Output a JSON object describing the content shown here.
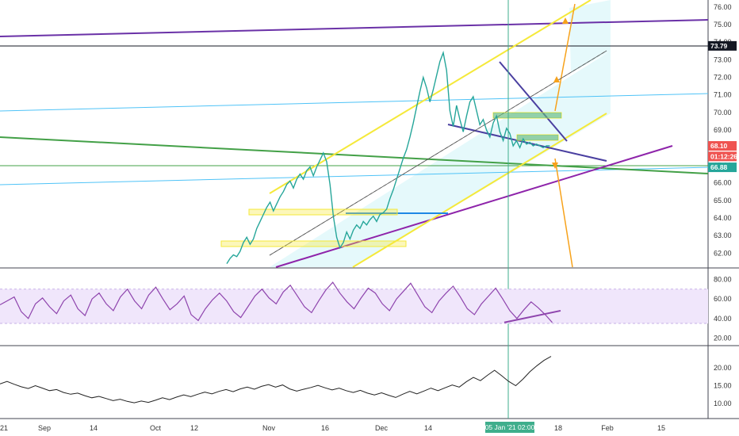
{
  "chart_data": {
    "type": "line",
    "title": "",
    "price_pane": {
      "ylim": [
        61.2,
        76.4
      ],
      "ticks": [
        "62.00",
        "63.00",
        "64.00",
        "65.00",
        "66.00",
        "67.00",
        "69.00",
        "70.00",
        "71.00",
        "72.00",
        "73.00",
        "74.00",
        "75.00",
        "76.00"
      ],
      "badges": [
        {
          "label": "73.79",
          "value": 73.79,
          "color": "#131722",
          "text_color": "#ffffff"
        },
        {
          "label": "68.10",
          "value": 68.1,
          "color": "#ef5350",
          "text_color": "#ffffff"
        },
        {
          "label": "01:12:26",
          "value": 67.5,
          "color": "#ef5350",
          "text_color": "#ffffff"
        },
        {
          "label": "66.88",
          "value": 66.88,
          "color": "#26a69a",
          "text_color": "#ffffff"
        }
      ],
      "series": [
        {
          "x": [
            20,
            22,
            24,
            26,
            28,
            30,
            32,
            34,
            36,
            38,
            40,
            42,
            44,
            46,
            48,
            50,
            52,
            54,
            56,
            58,
            60,
            62,
            64,
            66,
            68,
            70,
            72,
            74,
            76,
            78,
            80,
            82,
            84,
            86,
            88,
            90,
            92,
            94,
            96,
            98,
            100,
            102,
            104,
            106,
            108,
            110,
            112,
            114,
            116,
            118,
            120,
            122,
            124,
            126,
            128,
            130,
            132,
            134,
            136,
            138,
            140,
            142,
            144,
            146,
            148,
            150,
            152,
            154,
            156,
            158,
            160,
            162,
            164,
            166,
            168,
            170,
            172,
            174,
            176,
            178,
            180,
            182,
            184,
            186,
            188,
            190,
            192,
            194,
            196,
            198,
            200,
            202,
            204,
            206,
            208,
            210,
            212,
            214
          ],
          "y": [
            61.4,
            61.7,
            61.9,
            61.8,
            62.1,
            62.6,
            62.9,
            62.5,
            62.8,
            63.4,
            63.8,
            64.2,
            64.6,
            64.9,
            64.4,
            64.8,
            65.2,
            65.5,
            65.9,
            66.1,
            65.7,
            66.2,
            66.5,
            66.2,
            66.7,
            66.9,
            66.4,
            66.9,
            67.3,
            67.7,
            67.2,
            65.9,
            64.1,
            62.9,
            62.3,
            62.6,
            63.2,
            62.8,
            63.3,
            63.6,
            63.4,
            63.8,
            63.6,
            63.9,
            64.1,
            63.8,
            64.2,
            64.3,
            64.5,
            65.1,
            65.6,
            66.2,
            66.8,
            67.4,
            67.9,
            68.6,
            69.4,
            70.3,
            71.2,
            72.0,
            71.4,
            70.6,
            71.3,
            72.1,
            72.9,
            73.4,
            72.4,
            70.1,
            69.2,
            70.4,
            69.6,
            68.9,
            69.8,
            70.6,
            70.9,
            70.1,
            69.3,
            69.6,
            69.0,
            68.6,
            69.4,
            69.8,
            68.9,
            68.4,
            69.1,
            68.8,
            68.1,
            68.4,
            68.0,
            68.5,
            68.2,
            68.3,
            68.1,
            68.2,
            68.1,
            68.0,
            68.1,
            68.1
          ]
        }
      ]
    },
    "rsi_pane": {
      "ylim": [
        14,
        90
      ],
      "ticks": [
        "80.00",
        "60.00",
        "40.00",
        "20.00"
      ],
      "band": [
        35,
        70
      ],
      "series": [
        {
          "y": [
            54,
            58,
            62,
            47,
            40,
            55,
            61,
            52,
            45,
            58,
            64,
            50,
            43,
            60,
            66,
            55,
            48,
            62,
            70,
            58,
            50,
            64,
            72,
            60,
            49,
            55,
            63,
            44,
            38,
            50,
            59,
            66,
            58,
            47,
            41,
            52,
            63,
            70,
            61,
            55,
            67,
            74,
            63,
            52,
            46,
            58,
            69,
            77,
            66,
            57,
            50,
            61,
            71,
            66,
            55,
            48,
            60,
            68,
            76,
            64,
            52,
            46,
            58,
            66,
            73,
            62,
            50,
            44,
            55,
            63,
            71,
            60,
            48,
            40,
            49,
            57,
            51,
            44,
            36
          ]
        }
      ]
    },
    "volatility_pane": {
      "ylim": [
        6,
        26
      ],
      "ticks": [
        "20.00",
        "15.00",
        "10.00"
      ],
      "series": [
        {
          "y": [
            15.5,
            16.2,
            15.4,
            14.7,
            14.2,
            15.0,
            14.3,
            13.6,
            13.9,
            13.1,
            12.6,
            12.9,
            12.2,
            11.6,
            12.0,
            11.4,
            10.8,
            11.2,
            10.6,
            10.2,
            10.7,
            10.3,
            10.9,
            11.6,
            11.1,
            11.8,
            12.4,
            11.9,
            12.6,
            13.2,
            12.7,
            13.4,
            13.9,
            13.3,
            14.1,
            14.6,
            14.0,
            14.8,
            15.3,
            14.6,
            15.2,
            14.1,
            13.5,
            14.0,
            14.5,
            15.1,
            14.4,
            13.8,
            14.3,
            13.6,
            13.1,
            13.7,
            12.9,
            12.4,
            13.0,
            12.3,
            11.7,
            12.6,
            13.4,
            12.7,
            13.5,
            14.3,
            13.6,
            14.4,
            15.2,
            14.6,
            16.1,
            17.3,
            16.4,
            17.9,
            19.3,
            17.8,
            16.2,
            15.0,
            16.8,
            18.9,
            20.6,
            22.1,
            23.2
          ]
        }
      ]
    },
    "x_axis_labels": [
      "21",
      "Sep",
      "14",
      "Oct",
      "12",
      "Nov",
      "16",
      "Dec",
      "14",
      "18",
      "Feb",
      "15"
    ],
    "crosshair_label": "05 Jan '21   02:00",
    "colors": {
      "channel": "#f5e93a",
      "channel_fill": "#dff7fa",
      "green_line": "#43a047",
      "purple_line": "#6a31a7",
      "cyan_line": "#4fc3f7",
      "orange_line": "#f7a21b",
      "triangle": "#4a3fa0",
      "rsi_line": "#8e44ad",
      "rsi_band": "#f0e6fb",
      "vol_line": "#222222",
      "crosshair": "#3fae8c"
    }
  }
}
